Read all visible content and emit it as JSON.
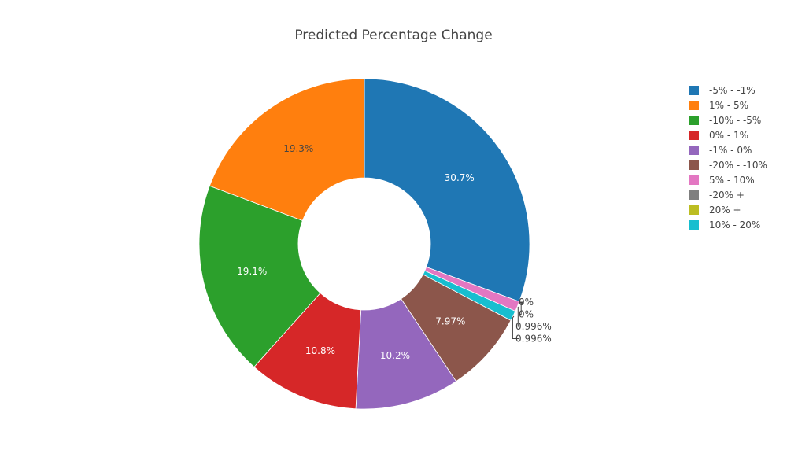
{
  "chart_data": {
    "type": "pie",
    "hole": true,
    "title": "Predicted Percentage Change",
    "legend_position": "right",
    "slices": [
      {
        "label": "-5% - -1%",
        "value": 30.7,
        "text": "30.7%",
        "color": "#1f77b4",
        "text_color": "#ffffff"
      },
      {
        "label": "-20% +",
        "value": 0,
        "text": "0%",
        "color": "#7f7f7f",
        "text_color": "#444444"
      },
      {
        "label": "20% +",
        "value": 0,
        "text": "0%",
        "color": "#bcbd22",
        "text_color": "#444444"
      },
      {
        "label": "5% - 10%",
        "value": 0.996,
        "text": "0.996%",
        "color": "#e377c2",
        "text_color": "#444444"
      },
      {
        "label": "10% - 20%",
        "value": 0.996,
        "text": "0.996%",
        "color": "#17becf",
        "text_color": "#444444"
      },
      {
        "label": "-20% - -10%",
        "value": 7.97,
        "text": "7.97%",
        "color": "#8c564b",
        "text_color": "#ffffff"
      },
      {
        "label": "-1% - 0%",
        "value": 10.2,
        "text": "10.2%",
        "color": "#9467bd",
        "text_color": "#ffffff"
      },
      {
        "label": "0% - 1%",
        "value": 10.8,
        "text": "10.8%",
        "color": "#d62728",
        "text_color": "#ffffff"
      },
      {
        "label": "-10% - -5%",
        "value": 19.1,
        "text": "19.1%",
        "color": "#2ca02c",
        "text_color": "#ffffff"
      },
      {
        "label": "1% - 5%",
        "value": 19.3,
        "text": "19.3%",
        "color": "#ff7f0e",
        "text_color": "#444444"
      }
    ],
    "legend": [
      {
        "label": "-5% - -1%",
        "color": "#1f77b4"
      },
      {
        "label": "1% - 5%",
        "color": "#ff7f0e"
      },
      {
        "label": "-10% - -5%",
        "color": "#2ca02c"
      },
      {
        "label": "0% - 1%",
        "color": "#d62728"
      },
      {
        "label": "-1% - 0%",
        "color": "#9467bd"
      },
      {
        "label": "-20% - -10%",
        "color": "#8c564b"
      },
      {
        "label": "5% - 10%",
        "color": "#e377c2"
      },
      {
        "label": "-20% +",
        "color": "#7f7f7f"
      },
      {
        "label": "20% +",
        "color": "#bcbd22"
      },
      {
        "label": "10% - 20%",
        "color": "#17becf"
      }
    ]
  }
}
